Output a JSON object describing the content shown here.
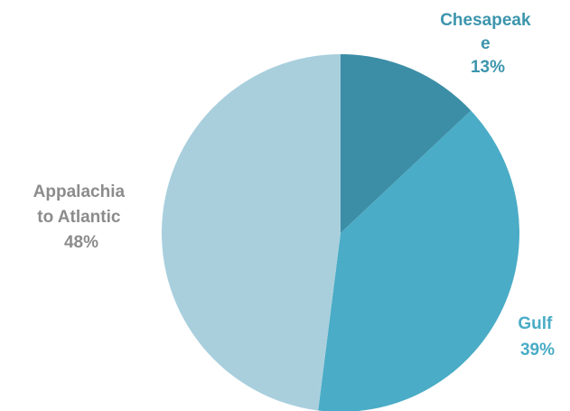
{
  "chart_data": {
    "type": "pie",
    "title": "",
    "start_angle_deg": 0,
    "direction": "clockwise",
    "legend": "none",
    "slices": [
      {
        "name": "Chesapeake",
        "value": 13,
        "label_lines": [
          "Chesapeak",
          "e",
          "13%"
        ],
        "color": "#3c8ea6",
        "label_color": "#3c95ad"
      },
      {
        "name": "Gulf",
        "value": 39,
        "label_lines": [
          "Gulf",
          "39%"
        ],
        "color": "#4aacc6",
        "label_color": "#4aacc6"
      },
      {
        "name": "Appalachia to Atlantic",
        "value": 48,
        "label_lines": [
          "Appalachia",
          "to Atlantic",
          "48%"
        ],
        "color": "#a9cfdd",
        "label_color": "#8c8c8c"
      }
    ]
  }
}
